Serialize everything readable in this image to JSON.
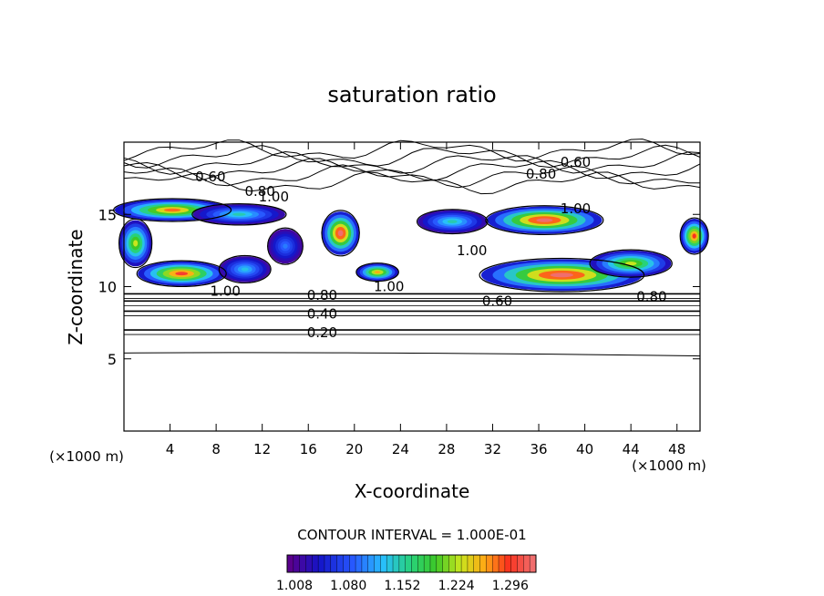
{
  "chart_data": {
    "type": "heatmap",
    "title": "saturation ratio",
    "xlabel": "X-coordinate",
    "ylabel": "Z-coordinate",
    "x_unit_label": "(×1000 m)",
    "z_unit_label": "(×1000 m)",
    "xlim": [
      0,
      50
    ],
    "ylim": [
      0,
      20
    ],
    "x_ticks": [
      "4",
      "8",
      "12",
      "16",
      "20",
      "24",
      "28",
      "32",
      "36",
      "40",
      "44",
      "48"
    ],
    "y_ticks": [
      "5",
      "10",
      "15"
    ],
    "contour_interval_label": "CONTOUR INTERVAL = 1.000E-01",
    "contour_labels": [
      {
        "text": "0.60",
        "x": 7.5,
        "z": 17.6
      },
      {
        "text": "0.80",
        "x": 11.8,
        "z": 16.6
      },
      {
        "text": "1.00",
        "x": 13.0,
        "z": 16.2
      },
      {
        "text": "0.80",
        "x": 36.2,
        "z": 17.8
      },
      {
        "text": "0.60",
        "x": 39.2,
        "z": 18.6
      },
      {
        "text": "1.00",
        "x": 39.2,
        "z": 15.4
      },
      {
        "text": "1.00",
        "x": 30.2,
        "z": 12.5
      },
      {
        "text": "1.00",
        "x": 8.8,
        "z": 9.7
      },
      {
        "text": "0.80",
        "x": 17.2,
        "z": 9.4
      },
      {
        "text": "1.00",
        "x": 23.0,
        "z": 10.0
      },
      {
        "text": "0.60",
        "x": 32.4,
        "z": 9.0
      },
      {
        "text": "0.80",
        "x": 45.8,
        "z": 9.3
      },
      {
        "text": "0.40",
        "x": 17.2,
        "z": 8.1
      },
      {
        "text": "0.20",
        "x": 17.2,
        "z": 6.8
      }
    ],
    "colorbar": {
      "tick_labels": [
        "1.008",
        "1.080",
        "1.152",
        "1.224",
        "1.296"
      ],
      "min": 1.008,
      "max": 1.34
    },
    "supersaturated_regions": [
      {
        "cx": 4.2,
        "cz": 15.3,
        "rx": 5.0,
        "rz": 0.75,
        "peak": 0.85
      },
      {
        "cx": 10.0,
        "cz": 15.0,
        "rx": 4.0,
        "rz": 0.7,
        "peak": 0.45
      },
      {
        "cx": 18.8,
        "cz": 13.7,
        "rx": 1.6,
        "rz": 1.5,
        "peak": 1.0
      },
      {
        "cx": 5.0,
        "cz": 10.9,
        "rx": 3.8,
        "rz": 0.85,
        "peak": 0.92
      },
      {
        "cx": 10.5,
        "cz": 11.2,
        "rx": 2.2,
        "rz": 0.9,
        "peak": 0.4
      },
      {
        "cx": 22.0,
        "cz": 11.0,
        "rx": 1.8,
        "rz": 0.6,
        "peak": 0.8
      },
      {
        "cx": 38.0,
        "cz": 10.8,
        "rx": 7.0,
        "rz": 1.1,
        "peak": 1.0
      },
      {
        "cx": 36.5,
        "cz": 14.6,
        "rx": 5.0,
        "rz": 0.95,
        "peak": 1.0
      },
      {
        "cx": 44.0,
        "cz": 11.6,
        "rx": 3.5,
        "rz": 0.9,
        "peak": 0.7
      },
      {
        "cx": 28.5,
        "cz": 14.5,
        "rx": 3.0,
        "rz": 0.8,
        "peak": 0.45
      },
      {
        "cx": 49.5,
        "cz": 13.5,
        "rx": 1.2,
        "rz": 1.2,
        "peak": 0.9
      },
      {
        "cx": 1.0,
        "cz": 13.0,
        "rx": 1.4,
        "rz": 1.6,
        "peak": 0.7
      },
      {
        "cx": 14.0,
        "cz": 12.8,
        "rx": 1.5,
        "rz": 1.2,
        "peak": 0.3
      }
    ],
    "contour_levels": [
      {
        "level": 0.2,
        "z": 7.0
      },
      {
        "level": 0.4,
        "z": 8.3
      },
      {
        "level": 0.6,
        "z": 9.0
      },
      {
        "level": 0.8,
        "z": 9.5
      }
    ]
  }
}
